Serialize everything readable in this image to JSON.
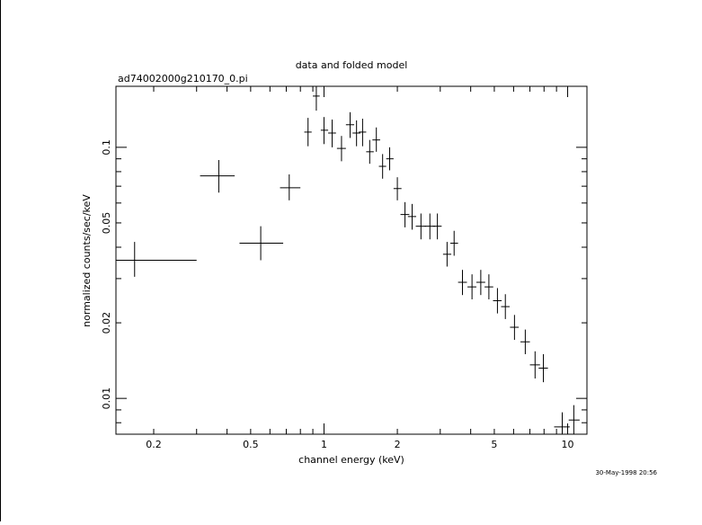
{
  "chart_data": {
    "type": "scatter",
    "title": "data and folded model",
    "subtitle": "ad74002000g210170_0.pi",
    "xlabel": "channel energy (keV)",
    "ylabel": "normalized counts/sec/keV",
    "timestamp": "30-May-1998 20:56",
    "x_scale": "log",
    "y_scale": "log",
    "xlim": [
      0.14,
      12.0
    ],
    "ylim": [
      0.0072,
      0.175
    ],
    "grid": false,
    "x_ticks": [
      {
        "value": 0.2,
        "label": "0.2"
      },
      {
        "value": 0.5,
        "label": "0.5"
      },
      {
        "value": 1,
        "label": "1"
      },
      {
        "value": 2,
        "label": "2"
      },
      {
        "value": 5,
        "label": "5"
      },
      {
        "value": 10,
        "label": "10"
      }
    ],
    "y_ticks": [
      {
        "value": 0.01,
        "label": "0.01"
      },
      {
        "value": 0.02,
        "label": "0.02"
      },
      {
        "value": 0.05,
        "label": "0.05"
      },
      {
        "value": 0.1,
        "label": "0.1"
      }
    ],
    "series": [
      {
        "points": [
          {
            "x": 0.167,
            "xlo": 0.14,
            "xhi": 0.3,
            "y": 0.0355,
            "ylo": 0.0305,
            "yhi": 0.042
          },
          {
            "x": 0.37,
            "xlo": 0.31,
            "xhi": 0.43,
            "y": 0.077,
            "ylo": 0.066,
            "yhi": 0.089
          },
          {
            "x": 0.55,
            "xlo": 0.45,
            "xhi": 0.68,
            "y": 0.0415,
            "ylo": 0.0355,
            "yhi": 0.0485
          },
          {
            "x": 0.72,
            "xlo": 0.66,
            "xhi": 0.8,
            "y": 0.069,
            "ylo": 0.0615,
            "yhi": 0.078
          },
          {
            "x": 0.86,
            "xlo": 0.83,
            "xhi": 0.89,
            "y": 0.115,
            "ylo": 0.101,
            "yhi": 0.131
          },
          {
            "x": 0.93,
            "xlo": 0.9,
            "xhi": 0.96,
            "y": 0.16,
            "ylo": 0.14,
            "yhi": 0.175
          },
          {
            "x": 1.0,
            "xlo": 0.97,
            "xhi": 1.04,
            "y": 0.117,
            "ylo": 0.103,
            "yhi": 0.132
          },
          {
            "x": 1.08,
            "xlo": 1.04,
            "xhi": 1.12,
            "y": 0.114,
            "ylo": 0.1,
            "yhi": 0.129
          },
          {
            "x": 1.18,
            "xlo": 1.13,
            "xhi": 1.23,
            "y": 0.099,
            "ylo": 0.088,
            "yhi": 0.111
          },
          {
            "x": 1.28,
            "xlo": 1.23,
            "xhi": 1.33,
            "y": 0.123,
            "ylo": 0.109,
            "yhi": 0.138
          },
          {
            "x": 1.36,
            "xlo": 1.31,
            "xhi": 1.41,
            "y": 0.114,
            "ylo": 0.101,
            "yhi": 0.128
          },
          {
            "x": 1.44,
            "xlo": 1.39,
            "xhi": 1.49,
            "y": 0.115,
            "ylo": 0.101,
            "yhi": 0.13
          },
          {
            "x": 1.54,
            "xlo": 1.49,
            "xhi": 1.6,
            "y": 0.096,
            "ylo": 0.086,
            "yhi": 0.107
          },
          {
            "x": 1.64,
            "xlo": 1.58,
            "xhi": 1.7,
            "y": 0.107,
            "ylo": 0.096,
            "yhi": 0.12
          },
          {
            "x": 1.74,
            "xlo": 1.68,
            "xhi": 1.8,
            "y": 0.084,
            "ylo": 0.075,
            "yhi": 0.094
          },
          {
            "x": 1.86,
            "xlo": 1.8,
            "xhi": 1.93,
            "y": 0.09,
            "ylo": 0.081,
            "yhi": 0.1
          },
          {
            "x": 2.0,
            "xlo": 1.93,
            "xhi": 2.08,
            "y": 0.0685,
            "ylo": 0.0615,
            "yhi": 0.076
          },
          {
            "x": 2.15,
            "xlo": 2.06,
            "xhi": 2.24,
            "y": 0.054,
            "ylo": 0.048,
            "yhi": 0.0605
          },
          {
            "x": 2.3,
            "xlo": 2.21,
            "xhi": 2.39,
            "y": 0.053,
            "ylo": 0.047,
            "yhi": 0.0595
          },
          {
            "x": 2.5,
            "xlo": 2.38,
            "xhi": 2.62,
            "y": 0.0485,
            "ylo": 0.043,
            "yhi": 0.0545
          },
          {
            "x": 2.72,
            "xlo": 2.59,
            "xhi": 2.86,
            "y": 0.0485,
            "ylo": 0.043,
            "yhi": 0.0545
          },
          {
            "x": 2.92,
            "xlo": 2.8,
            "xhi": 3.04,
            "y": 0.0485,
            "ylo": 0.043,
            "yhi": 0.0545
          },
          {
            "x": 3.2,
            "xlo": 3.08,
            "xhi": 3.33,
            "y": 0.0375,
            "ylo": 0.0335,
            "yhi": 0.042
          },
          {
            "x": 3.42,
            "xlo": 3.3,
            "xhi": 3.55,
            "y": 0.0415,
            "ylo": 0.037,
            "yhi": 0.0465
          },
          {
            "x": 3.7,
            "xlo": 3.55,
            "xhi": 3.86,
            "y": 0.029,
            "ylo": 0.0258,
            "yhi": 0.0325
          },
          {
            "x": 4.05,
            "xlo": 3.88,
            "xhi": 4.22,
            "y": 0.0278,
            "ylo": 0.0248,
            "yhi": 0.0312
          },
          {
            "x": 4.4,
            "xlo": 4.22,
            "xhi": 4.59,
            "y": 0.029,
            "ylo": 0.0258,
            "yhi": 0.0325
          },
          {
            "x": 4.75,
            "xlo": 4.56,
            "xhi": 4.95,
            "y": 0.0278,
            "ylo": 0.0248,
            "yhi": 0.0312
          },
          {
            "x": 5.15,
            "xlo": 4.94,
            "xhi": 5.36,
            "y": 0.0245,
            "ylo": 0.0218,
            "yhi": 0.0275
          },
          {
            "x": 5.55,
            "xlo": 5.33,
            "xhi": 5.78,
            "y": 0.0232,
            "ylo": 0.0207,
            "yhi": 0.026
          },
          {
            "x": 6.05,
            "xlo": 5.8,
            "xhi": 6.3,
            "y": 0.0192,
            "ylo": 0.0171,
            "yhi": 0.0215
          },
          {
            "x": 6.7,
            "xlo": 6.4,
            "xhi": 7.0,
            "y": 0.0168,
            "ylo": 0.015,
            "yhi": 0.0188
          },
          {
            "x": 7.35,
            "xlo": 7.0,
            "xhi": 7.7,
            "y": 0.0136,
            "ylo": 0.012,
            "yhi": 0.0154
          },
          {
            "x": 7.95,
            "xlo": 7.6,
            "xhi": 8.3,
            "y": 0.0132,
            "ylo": 0.0116,
            "yhi": 0.015
          },
          {
            "x": 9.5,
            "xlo": 8.8,
            "xhi": 10.2,
            "y": 0.0077,
            "ylo": 0.0072,
            "yhi": 0.0088
          },
          {
            "x": 10.6,
            "xlo": 10.1,
            "xhi": 11.2,
            "y": 0.0082,
            "ylo": 0.0072,
            "yhi": 0.0094
          }
        ]
      }
    ]
  }
}
